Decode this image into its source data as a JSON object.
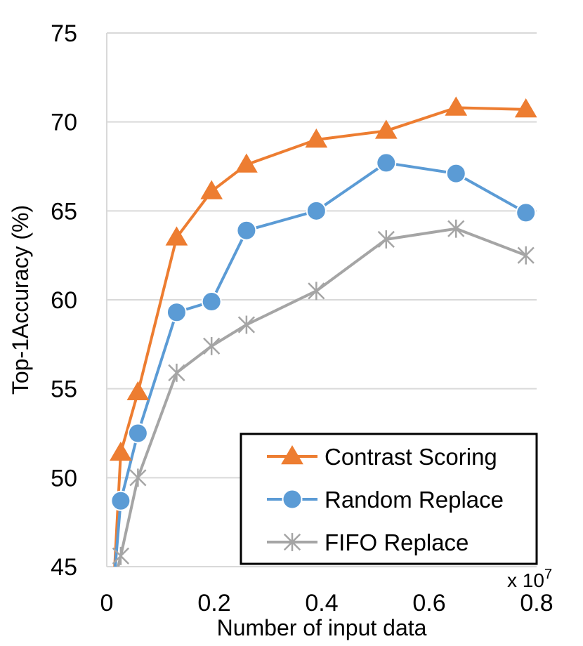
{
  "chart_data": {
    "type": "line",
    "title": "",
    "xlabel": "Number of input data",
    "ylabel": "Top-1Accuracy (%)",
    "x_multiplier_label": "x 10",
    "x_multiplier_exponent": "7",
    "xlim": [
      0,
      0.8
    ],
    "ylim": [
      45,
      75
    ],
    "xticks": [
      "0",
      "0.2",
      "0.4",
      "0.6",
      "0.8"
    ],
    "yticks": [
      "45",
      "50",
      "55",
      "60",
      "65",
      "70",
      "75"
    ],
    "grid": "horizontal",
    "legend_position": "bottom-right",
    "series": [
      {
        "name": "Contrast Scoring",
        "color": "#ed7d31",
        "marker": "triangle",
        "x": [
          0.013,
          0.026,
          0.058,
          0.13,
          0.195,
          0.26,
          0.39,
          0.52,
          0.65,
          0.78
        ],
        "y": [
          44.0,
          51.4,
          54.8,
          63.5,
          66.1,
          67.6,
          69.0,
          69.5,
          70.8,
          70.7
        ]
      },
      {
        "name": "Random Replace",
        "color": "#5b9bd5",
        "marker": "circle",
        "x": [
          0.013,
          0.026,
          0.058,
          0.13,
          0.195,
          0.26,
          0.39,
          0.52,
          0.65,
          0.78
        ],
        "y": [
          44.0,
          48.7,
          52.5,
          59.3,
          59.9,
          63.9,
          65.0,
          67.7,
          67.1,
          64.9
        ]
      },
      {
        "name": "FIFO Replace",
        "color": "#a5a5a5",
        "marker": "asterisk",
        "x": [
          0.013,
          0.026,
          0.058,
          0.13,
          0.195,
          0.26,
          0.39,
          0.52,
          0.65,
          0.78
        ],
        "y": [
          44.0,
          45.6,
          50.0,
          55.9,
          57.4,
          58.6,
          60.5,
          63.4,
          64.0,
          62.5
        ]
      }
    ]
  }
}
